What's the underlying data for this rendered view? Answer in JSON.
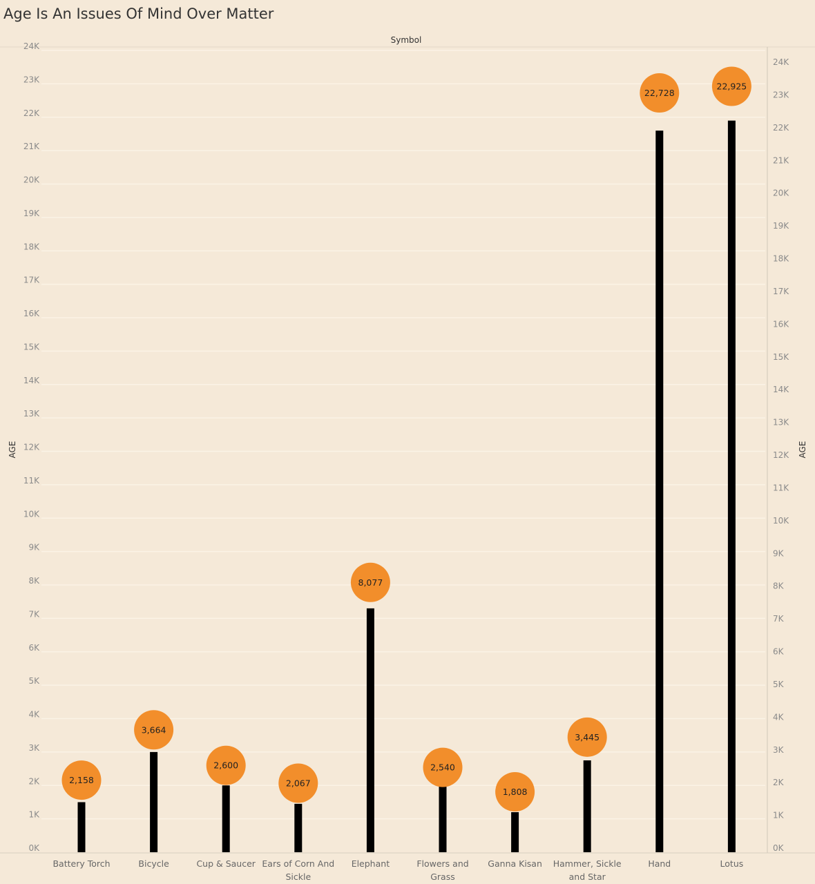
{
  "chart_data": {
    "type": "lollipop",
    "title": "Age Is An Issues Of Mind Over Matter",
    "column_header": "Symbol",
    "ylabel": "AGE",
    "ylabel_right": "AGE",
    "categories": [
      "Battery Torch",
      "Bicycle",
      "Cup & Saucer",
      "Ears of Corn And Sickle",
      "Elephant",
      "Flowers and Grass",
      "Ganna Kisan",
      "Hammer, Sickle and Star",
      "Hand",
      "Lotus"
    ],
    "category_lines": [
      [
        "Battery Torch"
      ],
      [
        "Bicycle"
      ],
      [
        "Cup & Saucer"
      ],
      [
        "Ears of Corn And",
        "Sickle"
      ],
      [
        "Elephant"
      ],
      [
        "Flowers and",
        "Grass"
      ],
      [
        "Ganna Kisan"
      ],
      [
        "Hammer, Sickle",
        "and Star"
      ],
      [
        "Hand"
      ],
      [
        "Lotus"
      ]
    ],
    "values": [
      2158,
      3664,
      2600,
      2067,
      8077,
      2540,
      1808,
      3445,
      22728,
      22925
    ],
    "value_labels": [
      "2,158",
      "3,664",
      "2,600",
      "2,067",
      "8,077",
      "2,540",
      "1,808",
      "3,445",
      "22,728",
      "22,925"
    ],
    "bar_values": [
      1500,
      3000,
      2000,
      1450,
      7300,
      2000,
      1200,
      2750,
      21600,
      21900
    ],
    "ylim_left": [
      0,
      24000
    ],
    "ylim_right": [
      0,
      24000
    ],
    "yticks": [
      0,
      1000,
      2000,
      3000,
      4000,
      5000,
      6000,
      7000,
      8000,
      9000,
      10000,
      11000,
      12000,
      13000,
      14000,
      15000,
      16000,
      17000,
      18000,
      19000,
      20000,
      21000,
      22000,
      23000,
      24000
    ],
    "ytick_labels": [
      "0K",
      "1K",
      "2K",
      "3K",
      "4K",
      "5K",
      "6K",
      "7K",
      "8K",
      "9K",
      "10K",
      "11K",
      "12K",
      "13K",
      "14K",
      "15K",
      "16K",
      "17K",
      "18K",
      "19K",
      "20K",
      "21K",
      "22K",
      "23K",
      "24K"
    ],
    "grid": true,
    "colors": {
      "circle": "#f28e2b",
      "stem": "#000000",
      "background": "#f5e9d8",
      "grid": "#fbf3e6"
    }
  }
}
